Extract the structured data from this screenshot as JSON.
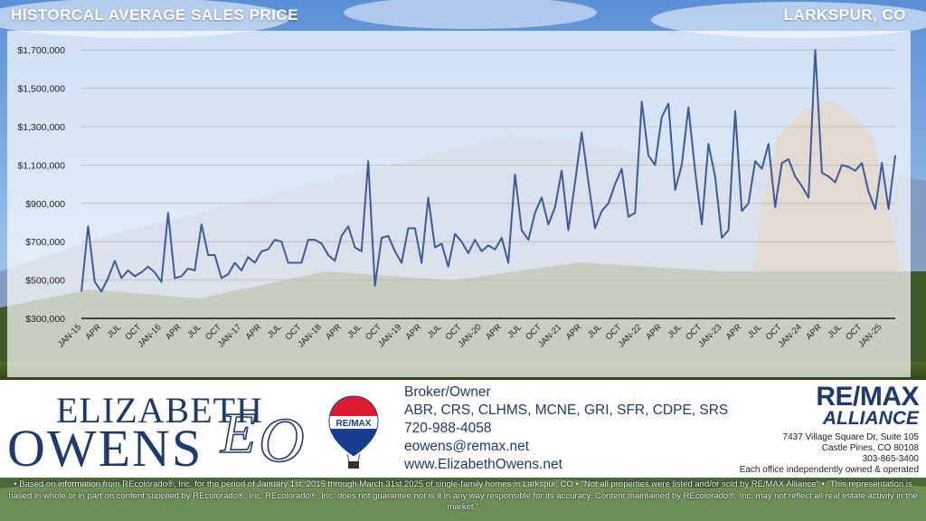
{
  "header": {
    "title": "HISTORCAL AVERAGE SALES PRICE",
    "location": "LARKSPUR, CO"
  },
  "chart_data": {
    "type": "line",
    "title": "HISTORCAL AVERAGE SALES PRICE",
    "xlabel": "",
    "ylabel": "",
    "ylim": [
      300000,
      1800000
    ],
    "y_ticks": [
      300000,
      500000,
      700000,
      900000,
      1100000,
      1300000,
      1500000,
      1700000
    ],
    "y_tick_labels": [
      "$300,000",
      "$500,000",
      "$700,000",
      "$900,000",
      "$1,100,000",
      "$1,300,000",
      "$1,500,000",
      "$1,700,000"
    ],
    "x_tick_labels": [
      "JAN-15",
      "APR",
      "JUL",
      "OCT",
      "JAN-16",
      "APR",
      "JUL",
      "OCT",
      "JAN-17",
      "APR",
      "JUL",
      "OCT",
      "JAN-18",
      "APR",
      "JUL",
      "OCT",
      "JAN-19",
      "APR",
      "JUL",
      "OCT",
      "JAN-20",
      "APR",
      "JUL",
      "OCT",
      "JAN-21",
      "APR",
      "JUL",
      "OCT",
      "JAN-22",
      "APR",
      "JUL",
      "OCT",
      "JAN-23",
      "APR",
      "JUL",
      "OCT",
      "JAN-24",
      "APR",
      "JUL",
      "OCT",
      "JAN-25"
    ],
    "grid": true,
    "line_color": "#3d5a99",
    "series": [
      {
        "values": [
          440000,
          780000,
          490000,
          440000,
          510000,
          600000,
          510000,
          550000,
          520000,
          540000,
          570000,
          540000,
          490000,
          850000,
          510000,
          520000,
          560000,
          550000,
          790000,
          630000,
          630000,
          510000,
          530000,
          590000,
          550000,
          620000,
          590000,
          650000,
          660000,
          710000,
          700000,
          590000,
          590000,
          590000,
          710000,
          710000,
          690000,
          630000,
          600000,
          730000,
          780000,
          670000,
          650000,
          1120000,
          470000,
          720000,
          730000,
          650000,
          590000,
          770000,
          770000,
          590000,
          930000,
          670000,
          690000,
          570000,
          740000,
          700000,
          640000,
          710000,
          650000,
          680000,
          660000,
          720000,
          590000,
          1050000,
          760000,
          710000,
          850000,
          930000,
          790000,
          880000,
          1070000,
          760000,
          1010000,
          1270000,
          1010000,
          770000,
          860000,
          900000,
          1000000,
          1080000,
          830000,
          850000,
          1430000,
          1150000,
          1100000,
          1350000,
          1420000,
          970000,
          1100000,
          1400000,
          1070000,
          790000,
          1210000,
          1040000,
          720000,
          760000,
          1380000,
          860000,
          900000,
          1120000,
          1080000,
          1210000,
          880000,
          1110000,
          1130000,
          1040000,
          990000,
          930000,
          1700000,
          1060000,
          1040000,
          1010000,
          1100000,
          1090000,
          1070000,
          1110000,
          960000,
          870000,
          1110000,
          870000,
          1150000
        ]
      }
    ]
  },
  "branding": {
    "name_first": "ELIZABETH",
    "name_last": "OWENS",
    "monogram": "EO",
    "balloon_text": "RE/MAX"
  },
  "contact": {
    "role": "Broker/Owner",
    "designations": "ABR, CRS, CLHMS, MCNE, GRI, SFR, CDPE, SRS",
    "phone": "720-988-4058",
    "email": "eowens@remax.net",
    "website": "www.ElizabethOwens.net"
  },
  "office": {
    "brand": "RE/MAX",
    "sub": "ALLIANCE",
    "address1": "7437 Village Square Dr, Suite 105",
    "address2": "Castle Pines, CO 80108",
    "phone": "303-865-3400",
    "note": "Each office independently owned & operated"
  },
  "disclaimer": "• Based on information from REcolorado®, Inc. for the period of January 1st, 2015 through March 31st 2025 of single-family homes in Larkspur, CO • \"Not all properties were listed and/or sold by RE/MAX Alliance\" • \"This representation is based in whole or in part on content supplied by REcolorado®, Inc. REcolorado®, Inc. does not guarantee nor is it in any way responsible for its accuracy. Content maintained by REcolorado®, Inc. may not reflect all real estate activity in the market.\""
}
